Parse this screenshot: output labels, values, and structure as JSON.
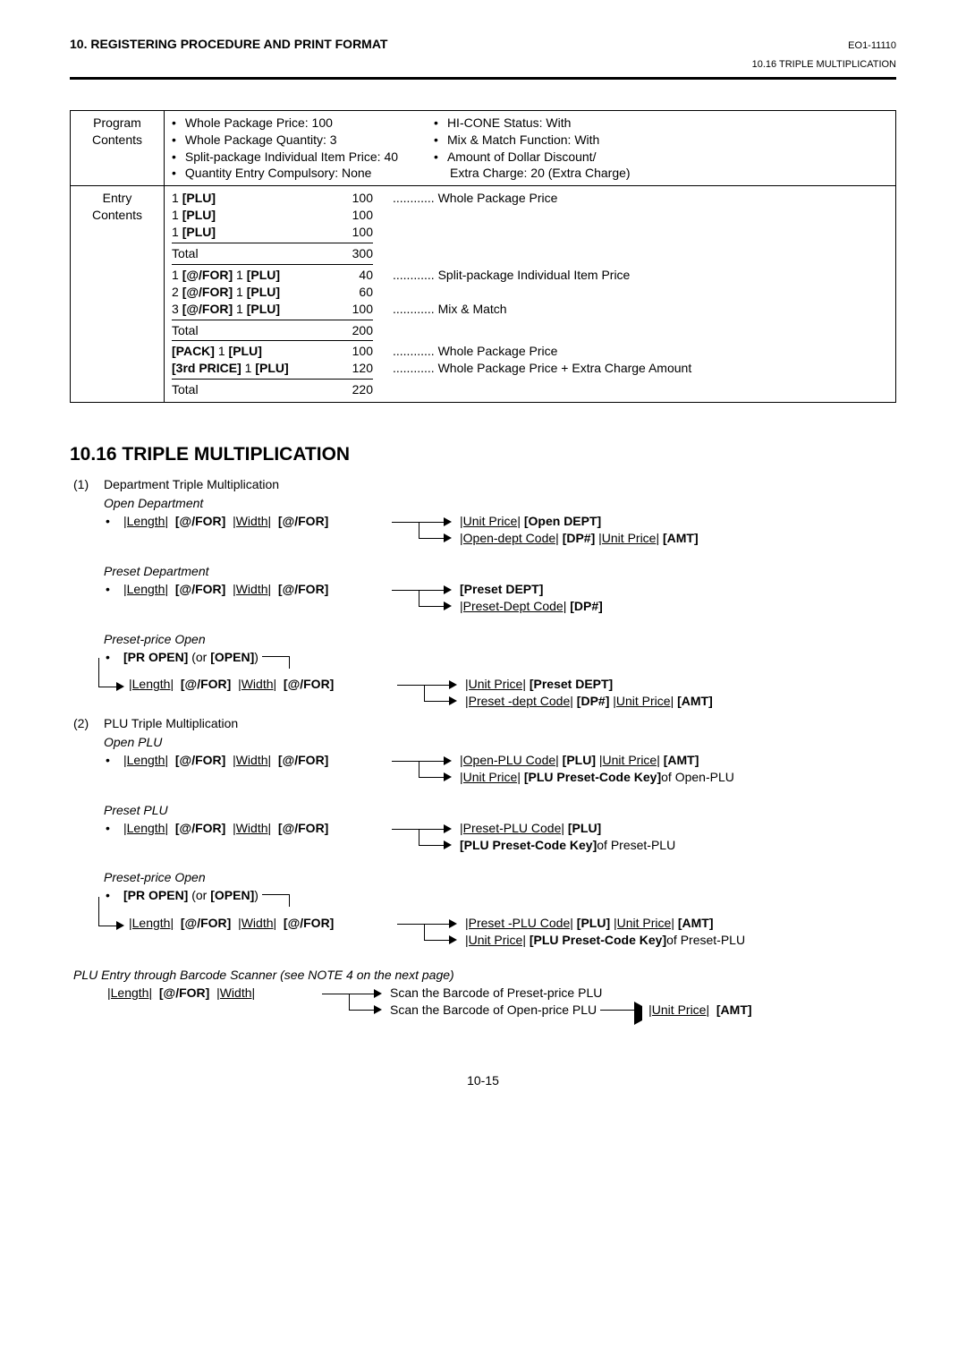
{
  "header": {
    "chapter_title": "10. REGISTERING PROCEDURE AND PRINT FORMAT",
    "doc_id": "EO1-11110",
    "subsection_id": "10.16  TRIPLE MULTIPLICATION"
  },
  "program_contents": {
    "label": "Program Contents",
    "left": [
      "Whole Package Price:  100",
      "Whole Package Quantity:  3",
      "Split-package Individual Item Price:  40",
      "Quantity Entry Compulsory:  None"
    ],
    "right": [
      "HI-CONE Status:  With",
      "Mix & Match Function:  With",
      "Amount of Dollar Discount/",
      "Extra Charge:  20 (Extra Charge)"
    ]
  },
  "entry_contents": {
    "label": "Entry Contents",
    "groups": [
      {
        "rows": [
          {
            "key_pre": "1 ",
            "key_bold": "[PLU]",
            "val": "100",
            "desc": "............ Whole Package Price"
          },
          {
            "key_pre": "1 ",
            "key_bold": "[PLU]",
            "val": "100",
            "desc": ""
          },
          {
            "key_pre": "1 ",
            "key_bold": "[PLU]",
            "val": "100",
            "desc": ""
          }
        ],
        "total": "300"
      },
      {
        "rows": [
          {
            "key_pre": "1 ",
            "key_bold": "[@/FOR]",
            "mid": "  1 ",
            "key_bold2": "[PLU]",
            "val": "40",
            "desc": "............ Split-package Individual Item Price"
          },
          {
            "key_pre": "2 ",
            "key_bold": "[@/FOR]",
            "mid": "  1 ",
            "key_bold2": "[PLU]",
            "val": "60",
            "desc": ""
          },
          {
            "key_pre": "3 ",
            "key_bold": "[@/FOR]",
            "mid": "  1 ",
            "key_bold2": "[PLU]",
            "val": "100",
            "desc": "............ Mix & Match"
          }
        ],
        "total": "200"
      },
      {
        "rows": [
          {
            "key_pre": "",
            "key_bold": "[PACK]",
            "mid": "  1 ",
            "key_bold2": "[PLU]",
            "val": "100",
            "desc": "............ Whole Package Price"
          },
          {
            "key_pre": "",
            "key_bold": "[3rd PRICE]",
            "mid": "  1 ",
            "key_bold2": "[PLU]",
            "val": "120",
            "desc": "............ Whole Package Price + Extra Charge Amount"
          }
        ],
        "total": "220"
      }
    ],
    "total_label": "Total"
  },
  "section": {
    "title": "10.16  TRIPLE MULTIPLICATION",
    "items": [
      {
        "num": "(1)",
        "title": "Department Triple Multiplication",
        "subs": [
          {
            "head": "Open Department",
            "left": "|Length|  [@/FOR]   |Width|  [@/FOR]",
            "branches": [
              "|Unit Price|  [Open DEPT]",
              "|Open-dept Code|  [DP#]   |Unit Price|  [AMT]"
            ]
          },
          {
            "head": "Preset Department",
            "left": "|Length|  [@/FOR]   |Width|  [@/FOR]",
            "branches": [
              "[Preset DEPT]",
              "|Preset-Dept Code|  [DP#]"
            ]
          },
          {
            "head": "Preset-price Open",
            "pre": "[PR OPEN] (or [OPEN])",
            "left": "|Length|  [@/FOR]   |Width|  [@/FOR]",
            "branches": [
              "|Unit Price|  [Preset DEPT]",
              "|Preset -dept Code|  [DP#]   |Unit Price|  [AMT]"
            ]
          }
        ]
      },
      {
        "num": "(2)",
        "title": "PLU Triple Multiplication",
        "subs": [
          {
            "head": "Open PLU",
            "left": "|Length|  [@/FOR]   |Width|  [@/FOR]",
            "branches": [
              "|Open-PLU Code|  [PLU]   |Unit Price|  [AMT]",
              "|Unit Price|  [PLU Preset-Code Key] of Open-PLU"
            ]
          },
          {
            "head": "Preset PLU",
            "left": "|Length|  [@/FOR]   |Width|  [@/FOR]",
            "branches": [
              "|Preset-PLU Code|  [PLU]",
              "[PLU Preset-Code Key] of Preset-PLU"
            ]
          },
          {
            "head": "Preset-price Open",
            "pre": "[PR OPEN] (or [OPEN])",
            "left": "|Length|  [@/FOR]   |Width|  [@/FOR]",
            "branches": [
              "|Preset -PLU Code|  [PLU]   |Unit Price|  [AMT]",
              "|Unit Price|  [PLU Preset-Code Key] of Preset-PLU"
            ]
          }
        ]
      }
    ],
    "barcode": {
      "head": "PLU Entry through Barcode Scanner (see NOTE 4 on the next page)",
      "left": "|Length|  [@/FOR]   |Width|",
      "b1": "Scan the Barcode of Preset-price PLU",
      "b2": "Scan the Barcode of Open-price PLU",
      "tail": "|Unit Price|  [AMT]"
    }
  },
  "page_number": "10-15"
}
